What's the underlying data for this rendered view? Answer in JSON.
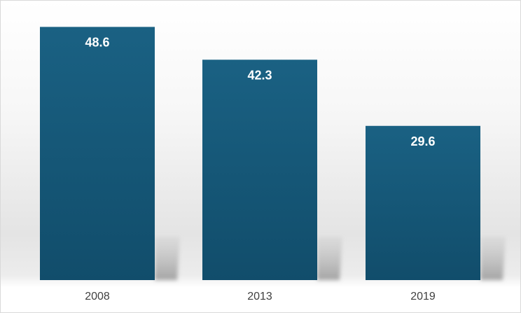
{
  "chart_data": {
    "type": "bar",
    "categories": [
      "2008",
      "2013",
      "2019"
    ],
    "values": [
      48.6,
      42.3,
      29.6
    ],
    "data_labels": [
      "48.6",
      "42.3",
      "29.6"
    ],
    "title": "",
    "xlabel": "",
    "ylabel": "",
    "ylim": [
      0,
      50
    ],
    "grid": false,
    "legend": "none",
    "colors": {
      "bar_top": "#1a6183",
      "bar_bottom": "#114d6b",
      "label": "#ffffff",
      "tick_label": "#404040"
    }
  }
}
